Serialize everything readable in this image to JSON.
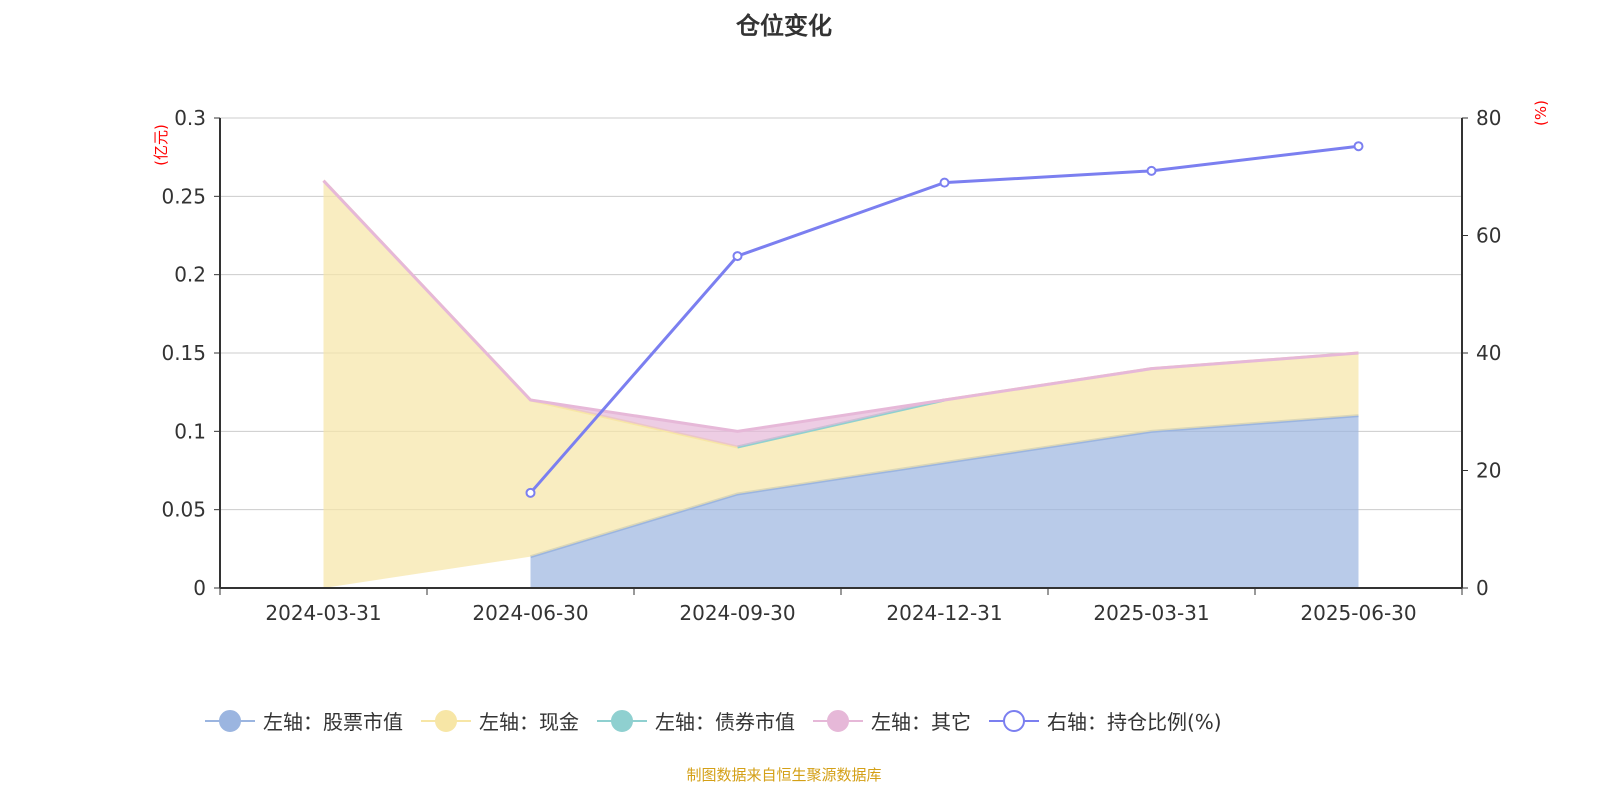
{
  "chart_data": {
    "type": "area",
    "title": "仓位变化",
    "categories": [
      "2024-03-31",
      "2024-06-30",
      "2024-09-30",
      "2024-12-31",
      "2025-03-31",
      "2025-06-30"
    ],
    "left_axis": {
      "unit": "(亿元)",
      "ylim": [
        0,
        0.3
      ],
      "ticks": [
        "0",
        "0.05",
        "0.1",
        "0.15",
        "0.2",
        "0.25",
        "0.3"
      ]
    },
    "right_axis": {
      "unit": "(%)",
      "ylim": [
        0,
        80
      ],
      "ticks": [
        "0",
        "20",
        "40",
        "60",
        "80"
      ]
    },
    "stacked": true,
    "grid": true,
    "legend_position": "bottom",
    "series": [
      {
        "name": "左轴：股票市值",
        "axis": "left",
        "type": "area",
        "color": "#9bb5e0",
        "values": [
          null,
          0.02,
          0.06,
          0.08,
          0.1,
          0.11
        ]
      },
      {
        "name": "左轴：现金",
        "axis": "left",
        "type": "area",
        "color": "#f7e6a6",
        "values": [
          0.26,
          0.1,
          0.03,
          0.04,
          0.04,
          0.04
        ]
      },
      {
        "name": "左轴：债券市值",
        "axis": "left",
        "type": "area",
        "color": "#8fd0d0",
        "values": [
          null,
          null,
          0,
          0,
          null,
          null
        ]
      },
      {
        "name": "左轴：其它",
        "axis": "left",
        "type": "area",
        "color": "#e6b8d8",
        "values": [
          0,
          0,
          0.01,
          0,
          0,
          0
        ]
      },
      {
        "name": "右轴：持仓比例(%)",
        "axis": "right",
        "type": "line",
        "color": "#7b7ff0",
        "values": [
          null,
          16.2,
          56.5,
          69,
          71,
          75.2
        ]
      }
    ]
  },
  "source": "制图数据来自恒生聚源数据库"
}
